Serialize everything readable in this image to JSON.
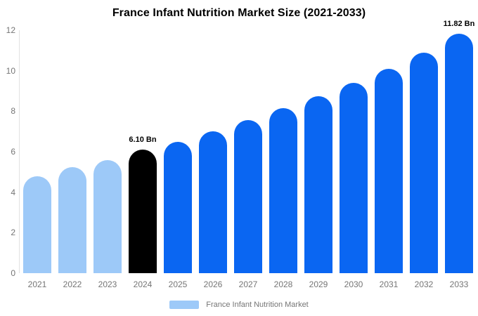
{
  "title": "France Infant Nutrition Market Size (2021-2033)",
  "legend": {
    "label": "France Infant Nutrition Market",
    "swatch_color": "#9DC9F8"
  },
  "colors": {
    "historical_bar": "#9DC9F8",
    "base_year_bar": "#000000",
    "forecast_bar": "#0A66F2",
    "axis_text": "#757575",
    "axis_line": "#e2e2e2",
    "annotation_text": "#000000"
  },
  "chart_data": {
    "type": "bar",
    "title": "France Infant Nutrition Market Size (2021-2033)",
    "unit": "Bn",
    "categories": [
      "2021",
      "2022",
      "2023",
      "2024",
      "2025",
      "2026",
      "2027",
      "2028",
      "2029",
      "2030",
      "2031",
      "2032",
      "2033"
    ],
    "values": [
      4.8,
      5.25,
      5.6,
      6.1,
      6.5,
      7.0,
      7.55,
      8.15,
      8.75,
      9.4,
      10.1,
      10.9,
      11.82
    ],
    "bar_colors": [
      "#9DC9F8",
      "#9DC9F8",
      "#9DC9F8",
      "#000000",
      "#0A66F2",
      "#0A66F2",
      "#0A66F2",
      "#0A66F2",
      "#0A66F2",
      "#0A66F2",
      "#0A66F2",
      "#0A66F2",
      "#0A66F2"
    ],
    "annotations": [
      {
        "category": "2024",
        "text": "6.10 Bn"
      },
      {
        "category": "2033",
        "text": "11.82 Bn"
      }
    ],
    "xlabel": "",
    "ylabel": "",
    "ylim": [
      0,
      12
    ],
    "yticks": [
      0,
      2,
      4,
      6,
      8,
      10,
      12
    ],
    "grid": false,
    "legend_position": "bottom",
    "legend_entries": [
      {
        "label": "France Infant Nutrition Market",
        "color": "#9DC9F8"
      }
    ]
  }
}
